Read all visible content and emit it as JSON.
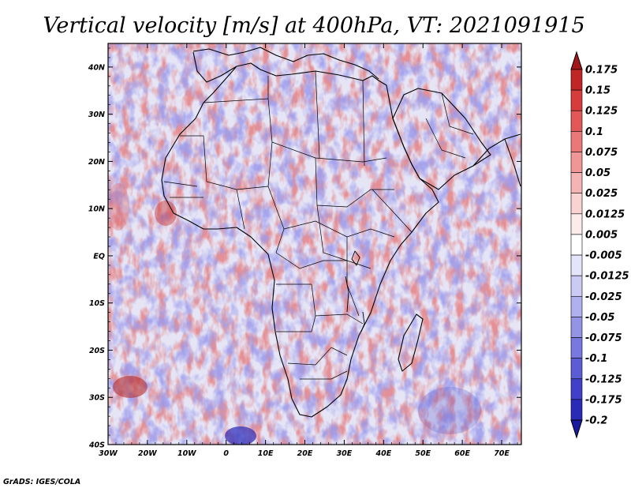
{
  "chart_data": {
    "type": "heatmap",
    "title": "Vertical velocity [m/s] at 400hPa, VT: 2021091915",
    "x_tick_labels": [
      "30W",
      "20W",
      "10W",
      "0",
      "10E",
      "20E",
      "30E",
      "40E",
      "50E",
      "60E",
      "70E"
    ],
    "x_tick_values": [
      -30,
      -20,
      -10,
      0,
      10,
      20,
      30,
      40,
      50,
      60,
      70
    ],
    "y_tick_labels": [
      "40N",
      "30N",
      "20N",
      "10N",
      "EQ",
      "10S",
      "20S",
      "30S",
      "40S"
    ],
    "y_tick_values": [
      40,
      30,
      20,
      10,
      0,
      -10,
      -20,
      -30,
      -40
    ],
    "xlim": [
      -30,
      75
    ],
    "ylim": [
      -40,
      45
    ],
    "colorbar": {
      "labels": [
        "0.175",
        "0.15",
        "0.125",
        "0.1",
        "0.075",
        "0.05",
        "0.025",
        "0.0125",
        "0.005",
        "-0.005",
        "-0.0125",
        "-0.025",
        "-0.05",
        "-0.075",
        "-0.1",
        "-0.125",
        "-0.175",
        "-0.2"
      ],
      "colors": [
        "#a01818",
        "#c02626",
        "#d63c3c",
        "#e25858",
        "#ea7878",
        "#f09696",
        "#f5b4b4",
        "#f9d2d2",
        "#fcebeb",
        "#ffffff",
        "#e4e4fa",
        "#cacaf4",
        "#b0b0ee",
        "#9494e6",
        "#7878de",
        "#5c5cd4",
        "#4040c8",
        "#2a2ab8",
        "#1a1a9e"
      ]
    }
  },
  "footer": {
    "credit": "GrADS: IGES/COLA"
  },
  "colors": {
    "positive": "#d23a3a",
    "negative": "#4a4ad0",
    "background": "#e9e8f7"
  }
}
